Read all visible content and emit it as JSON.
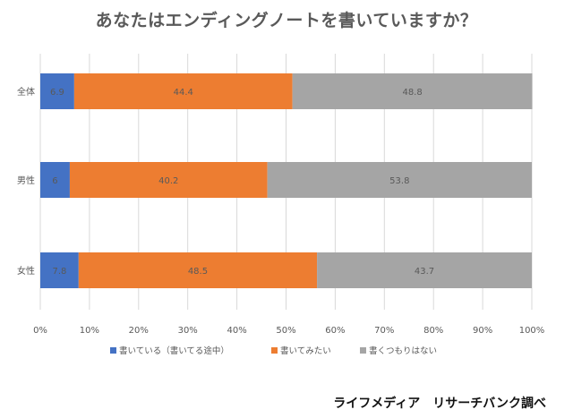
{
  "chart_data": {
    "type": "bar",
    "orientation": "horizontal",
    "stacked": true,
    "title": "あなたはエンディングノートを書いていますか？",
    "categories": [
      "全体",
      "男性",
      "女性"
    ],
    "series": [
      {
        "name": "書いている（書いてる途中）",
        "values": [
          6.9,
          6,
          7.8
        ],
        "color": "#4472C4"
      },
      {
        "name": "書いてみたい",
        "values": [
          44.4,
          40.2,
          48.5
        ],
        "color": "#ED7D31"
      },
      {
        "name": "書くつもりはない",
        "values": [
          48.8,
          53.8,
          43.7
        ],
        "color": "#A5A5A5"
      }
    ],
    "xlim": [
      0,
      100
    ],
    "xticks": [
      "0%",
      "10%",
      "20%",
      "30%",
      "40%",
      "50%",
      "60%",
      "70%",
      "80%",
      "90%",
      "100%"
    ],
    "grid": true,
    "legend": "bottom"
  },
  "source": "ライフメディア　リサーチバンク調べ"
}
